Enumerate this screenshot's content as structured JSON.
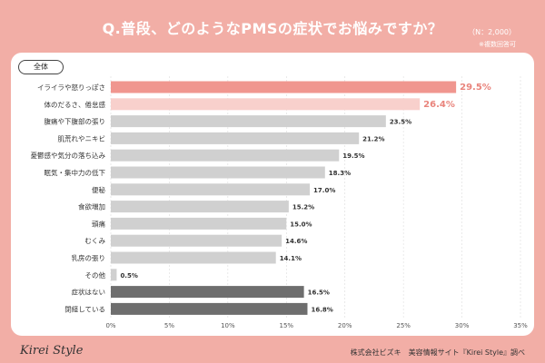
{
  "header": {
    "question": "Q.普段、どのようなPMSの症状でお悩みですか？",
    "n_label": "（N：2,000）",
    "multi_label": "※複数回答可"
  },
  "badge": "全体",
  "footer": {
    "logo": "Kirei Style",
    "source": "株式会社ビズキ　美容情報サイト『Kirei Style』調べ"
  },
  "colors": {
    "background": "#f2aea6",
    "highlight_1": "#f0968f",
    "highlight_2": "#f8d0cc",
    "normal_bar": "#d0d0d0",
    "dark_bar": "#6e6e6e",
    "highlight_label": "#e9847c"
  },
  "chart_data": {
    "type": "bar",
    "orientation": "horizontal",
    "categories": [
      "イライラや怒りっぽさ",
      "体のだるさ、倦怠感",
      "腹痛や下腹部の張り",
      "肌荒れやニキビ",
      "憂鬱感や気分の落ち込み",
      "眠気・集中力の低下",
      "便秘",
      "食欲増加",
      "頭痛",
      "むくみ",
      "乳房の張り",
      "その他",
      "症状はない",
      "閉経している"
    ],
    "values": [
      29.5,
      26.4,
      23.5,
      21.2,
      19.5,
      18.3,
      17.0,
      15.2,
      15.0,
      14.6,
      14.1,
      0.5,
      16.5,
      16.8
    ],
    "value_labels": [
      "29.5%",
      "26.4%",
      "23.5%",
      "21.2%",
      "19.5%",
      "18.3%",
      "17.0%",
      "15.2%",
      "15.0%",
      "14.6%",
      "14.1%",
      "0.5%",
      "16.5%",
      "16.8%"
    ],
    "bar_styles": [
      "highlight_1",
      "highlight_2",
      "normal",
      "normal",
      "normal",
      "normal",
      "normal",
      "normal",
      "normal",
      "normal",
      "normal",
      "normal",
      "dark",
      "dark"
    ],
    "xlim": [
      0,
      35
    ],
    "xticks": [
      "0%",
      "5%",
      "10%",
      "15%",
      "20%",
      "25%",
      "30%",
      "35%"
    ],
    "xtick_values": [
      0,
      5,
      10,
      15,
      20,
      25,
      30,
      35
    ],
    "grid": true
  }
}
